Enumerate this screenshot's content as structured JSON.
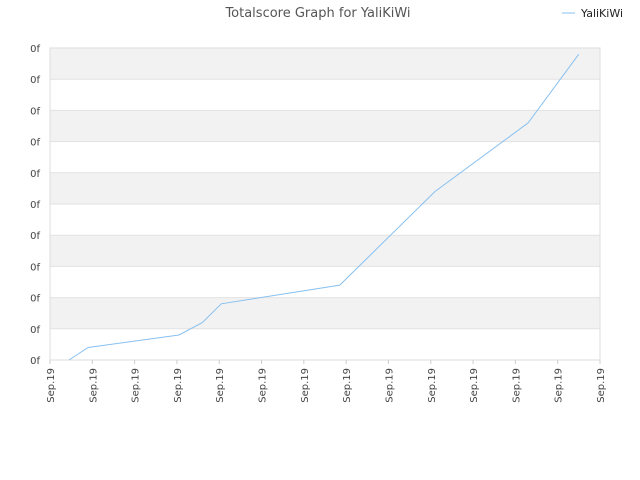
{
  "chart_data": {
    "type": "line",
    "title": "Totalscore Graph for YaliKiWi",
    "xlabel": "",
    "ylabel": "",
    "grid": true,
    "legend_position": "top-right",
    "x_tick_labels": [
      "Sep.19",
      "Sep.19",
      "Sep.19",
      "Sep.19",
      "Sep.19",
      "Sep.19",
      "Sep.19",
      "Sep.19",
      "Sep.19",
      "Sep.19",
      "Sep.19",
      "Sep.19",
      "Sep.19",
      "Sep.19"
    ],
    "y_tick_labels": [
      "0f",
      "0f",
      "0f",
      "0f",
      "0f",
      "0f",
      "0f",
      "0f",
      "0f",
      "0f",
      "0f"
    ],
    "xlim": [
      0,
      13
    ],
    "ylim": [
      0,
      10
    ],
    "series": [
      {
        "name": "YaliKiWi",
        "color": "#88c0f0",
        "x": [
          0.45,
          0.9,
          3.05,
          3.6,
          4.05,
          6.85,
          9.1,
          11.3,
          12.5
        ],
        "y": [
          0.0,
          0.4,
          0.8,
          1.2,
          1.8,
          2.4,
          5.4,
          7.6,
          9.8
        ]
      }
    ]
  }
}
